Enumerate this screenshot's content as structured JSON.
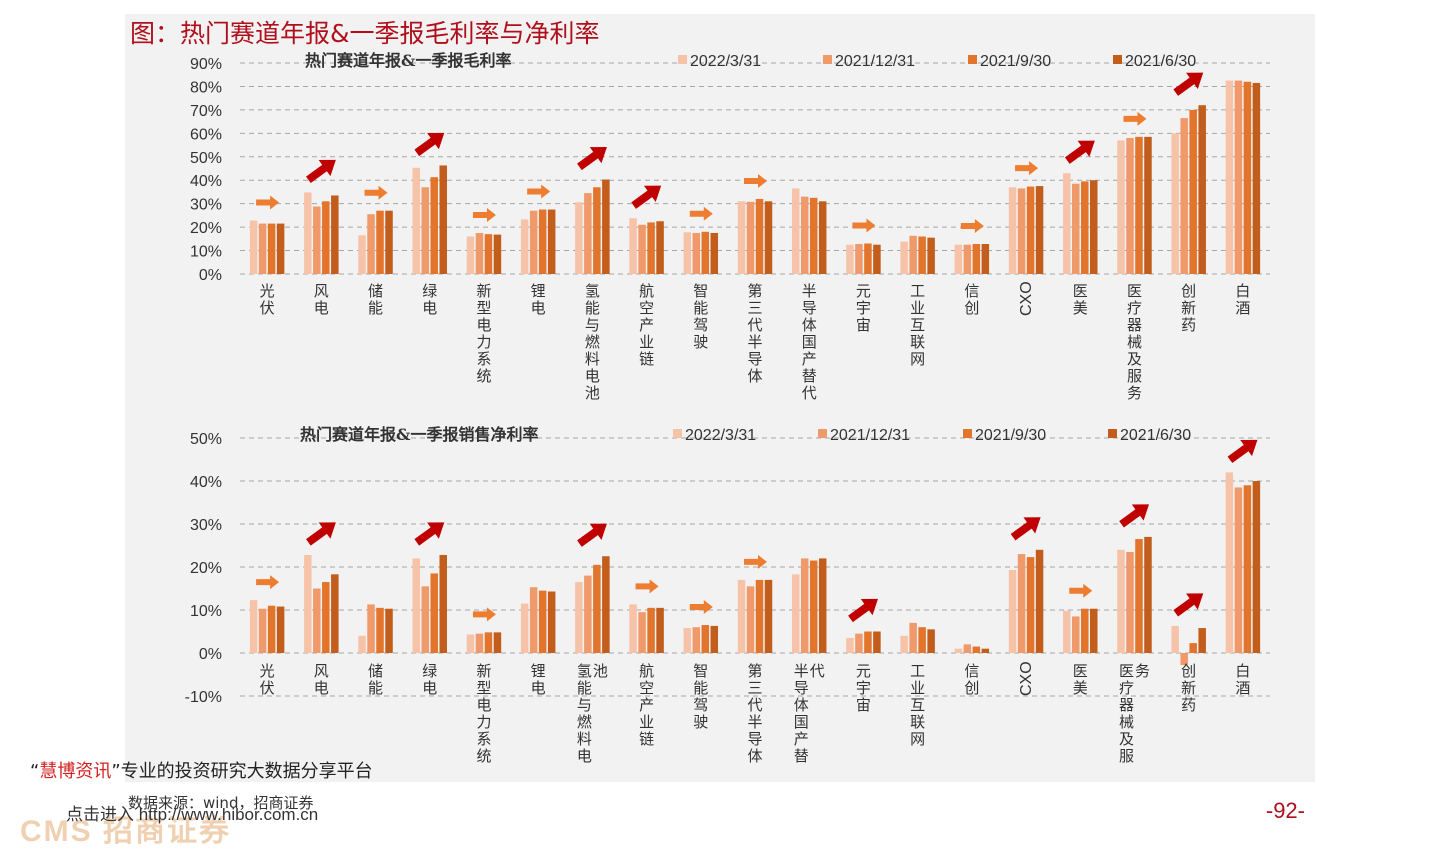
{
  "figure_title": "图：热门赛道年报&一季报毛利率与净利率",
  "source": "数据来源：wind，招商证券",
  "page_number": "-92-",
  "watermark": {
    "quote_open": "“",
    "brand": "慧博资讯",
    "quote_close": "”",
    "slogan": "专业的投资研究大数据分享平台",
    "link": "点击进入 http://www.hibor.com.cn",
    "logo": "CMS 招商证券"
  },
  "colors": {
    "series": [
      "#f7c3a8",
      "#f0996a",
      "#e2742b",
      "#c25d1c"
    ],
    "flat_arrow": "#ed7d31",
    "up_arrow": "#c00000"
  },
  "chart_data": [
    {
      "type": "bar",
      "title": "热门赛道年报&一季报毛利率",
      "categories": [
        "光伏",
        "风电",
        "储能",
        "绿电",
        "新型电力系统",
        "锂电",
        "氢能与燃料电池",
        "航空产业链",
        "智能驾驶",
        "第三代半导体",
        "半导体国产替代",
        "元宇宙",
        "工业互联网",
        "信创",
        "CXO",
        "医美",
        "医疗器械及服务",
        "创新药",
        "白酒"
      ],
      "tick_labels": [
        "光伏",
        "风电",
        "储能",
        "绿电",
        "新型电力系统",
        "锂电",
        "氢能与燃料电池",
        "航空产业链",
        "智能驾驶",
        "第三代半导体",
        "半导体国产替代",
        "元宇宙",
        "工业互联网",
        "信创",
        "CXO",
        "医美",
        "医疗器械及服务",
        "创新药",
        "白酒"
      ],
      "series": [
        {
          "name": "2022/3/31",
          "values": [
            22.8,
            34.8,
            16.5,
            45.3,
            16.0,
            23.3,
            30.6,
            23.8,
            17.8,
            31.0,
            36.5,
            12.5,
            13.8,
            12.5,
            37.0,
            43.0,
            57.0,
            60.0,
            82.5
          ]
        },
        {
          "name": "2021/12/31",
          "values": [
            21.5,
            28.8,
            25.5,
            37.0,
            17.5,
            27.0,
            34.5,
            21.0,
            17.5,
            30.8,
            33.0,
            12.8,
            16.3,
            12.5,
            36.5,
            38.5,
            58.0,
            66.5,
            82.5
          ]
        },
        {
          "name": "2021/9/30",
          "values": [
            21.5,
            31.0,
            27.0,
            41.3,
            17.0,
            27.5,
            37.0,
            22.0,
            18.0,
            32.0,
            32.5,
            13.0,
            16.0,
            12.8,
            37.3,
            39.5,
            58.5,
            70.0,
            82.0
          ]
        },
        {
          "name": "2021/6/30",
          "values": [
            21.5,
            33.5,
            27.0,
            46.3,
            16.8,
            27.5,
            40.3,
            22.5,
            17.5,
            31.0,
            31.0,
            12.5,
            15.5,
            12.8,
            37.5,
            40.0,
            58.5,
            72.0,
            81.5
          ]
        }
      ],
      "ylim": [
        0,
        90
      ],
      "yticks": [
        0,
        10,
        20,
        30,
        40,
        50,
        60,
        70,
        80,
        90
      ],
      "ytick_labels": [
        "0%",
        "10%",
        "20%",
        "30%",
        "40%",
        "50%",
        "60%",
        "70%",
        "80%",
        "90%"
      ],
      "gridlines": true,
      "legend": "top-right",
      "trend_arrows": [
        "flat",
        "up",
        "flat",
        "up",
        "flat",
        "flat",
        "up",
        "up",
        "flat",
        "flat",
        "none",
        "flat",
        "none",
        "flat",
        "flat",
        "up",
        "flat",
        "up",
        "none"
      ]
    },
    {
      "type": "bar",
      "title": "热门赛道年报&一季报销售净利率",
      "categories": [
        "光伏",
        "风电",
        "储能",
        "绿电",
        "新型电力系统",
        "锂电",
        "氢能与燃料电池",
        "航空产业链",
        "智能驾驶",
        "第三代半导体",
        "半导体国产替代",
        "元宇宙",
        "工业互联网",
        "信创",
        "CXO",
        "医美",
        "医疗器械及服务",
        "创新药",
        "白酒"
      ],
      "tick_labels": [
        "光伏",
        "风电",
        "储能",
        "绿电",
        "新型电力系统",
        "锂电",
        "氢能与燃料电\n池",
        "航空产业链",
        "智能驾驶",
        "第三代半导体",
        "半导体国产替\n代",
        "元宇宙",
        "工业互联网",
        "信创",
        "CXO",
        "医美",
        "医疗器械及服\n务",
        "创新药",
        "白酒"
      ],
      "series": [
        {
          "name": "2022/3/31",
          "values": [
            12.3,
            22.8,
            4.0,
            22.0,
            4.3,
            11.5,
            16.5,
            11.3,
            5.8,
            17.0,
            18.3,
            3.5,
            4.0,
            1.0,
            19.3,
            9.8,
            24.0,
            6.3,
            42.0
          ]
        },
        {
          "name": "2021/12/31",
          "values": [
            10.3,
            15.0,
            11.3,
            15.5,
            4.5,
            15.3,
            18.0,
            9.5,
            6.0,
            15.5,
            22.0,
            4.5,
            7.0,
            2.0,
            23.0,
            8.5,
            23.5,
            -2.8,
            38.5
          ]
        },
        {
          "name": "2021/9/30",
          "values": [
            11.0,
            16.5,
            10.5,
            18.5,
            4.8,
            14.5,
            20.5,
            10.5,
            6.5,
            17.0,
            21.5,
            5.0,
            6.0,
            1.5,
            22.3,
            10.3,
            26.5,
            2.3,
            39.0
          ]
        },
        {
          "name": "2021/6/30",
          "values": [
            10.8,
            18.3,
            10.3,
            22.8,
            4.8,
            14.3,
            22.5,
            10.5,
            6.3,
            17.0,
            22.0,
            5.0,
            5.5,
            1.0,
            24.0,
            10.3,
            27.0,
            5.8,
            40.0
          ]
        }
      ],
      "ylim": [
        -10,
        50
      ],
      "yticks": [
        -10,
        0,
        10,
        20,
        30,
        40,
        50
      ],
      "ytick_labels": [
        "-10%",
        "0%",
        "10%",
        "20%",
        "30%",
        "40%",
        "50%"
      ],
      "gridlines": true,
      "legend": "top-right",
      "trend_arrows": [
        "flat",
        "up",
        "none",
        "up",
        "flat",
        "none",
        "up",
        "flat",
        "flat",
        "flat",
        "none",
        "up",
        "none",
        "none",
        "up",
        "flat",
        "up",
        "up",
        "up"
      ]
    }
  ]
}
